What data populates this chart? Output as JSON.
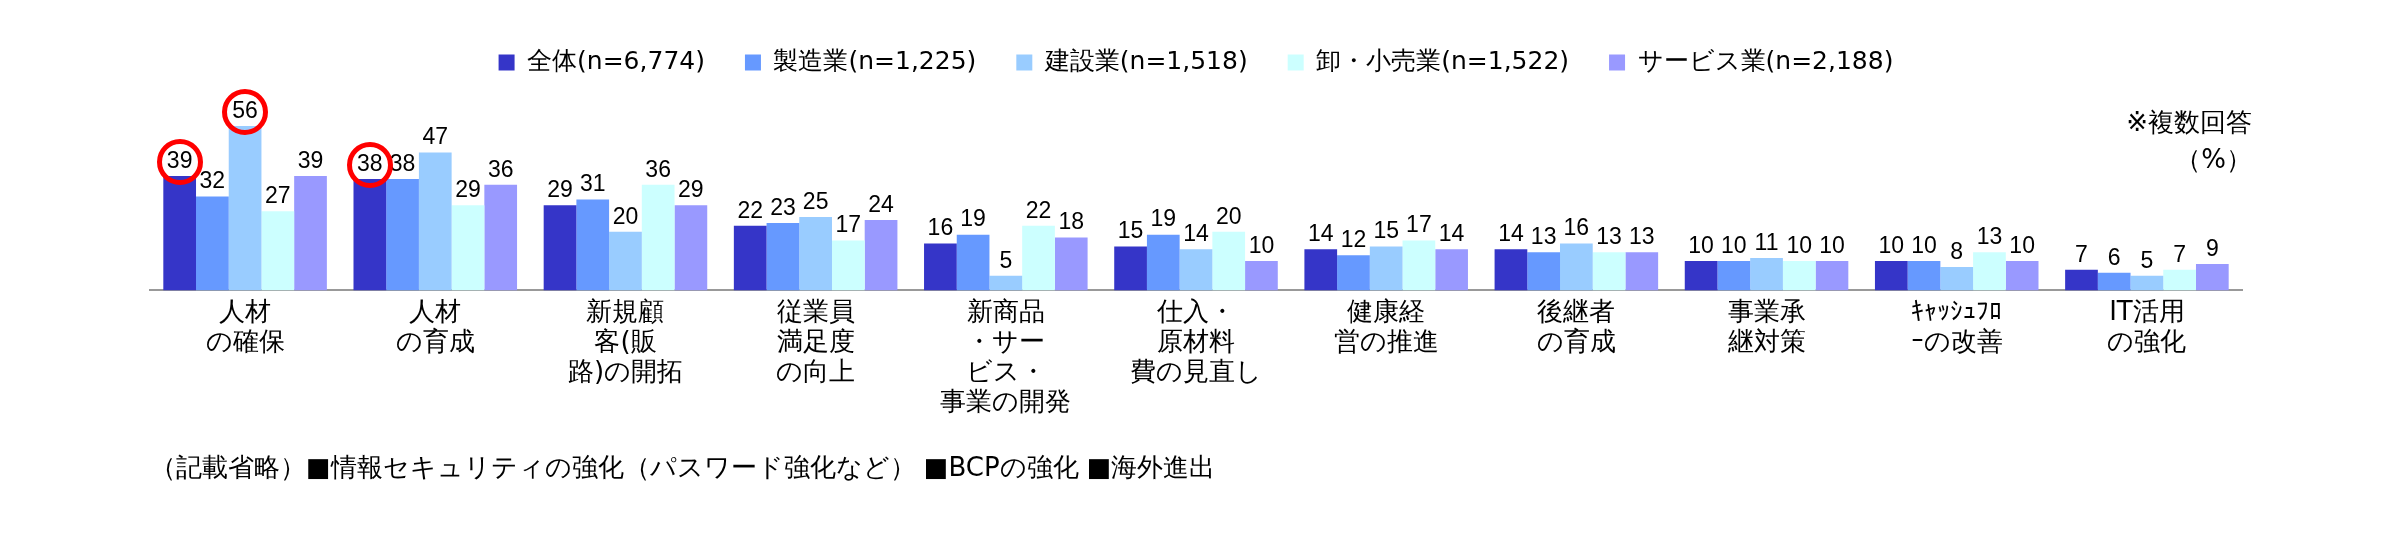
{
  "chart_data": {
    "type": "bar",
    "categories": [
      "人材の確保",
      "人材の育成",
      "新規顧客(販路)の開拓",
      "従業員満足度の向上",
      "新商品・サービス・事業の開発",
      "仕入・原材料費の見直し",
      "健康経営の推進",
      "後継者の育成",
      "事業承継対策",
      "ｷｬｯｼｭﾌﾛｰの改善",
      "IT活用の強化"
    ],
    "series": [
      {
        "name": "全体(n=6,774)",
        "color": "#3535c8",
        "values": [
          39,
          38,
          29,
          22,
          16,
          15,
          14,
          14,
          10,
          10,
          7
        ]
      },
      {
        "name": "製造業(n=1,225)",
        "color": "#6699ff",
        "values": [
          32,
          38,
          31,
          23,
          19,
          19,
          12,
          13,
          10,
          10,
          6
        ]
      },
      {
        "name": "建設業(n=1,518)",
        "color": "#99ccff",
        "values": [
          56,
          47,
          20,
          25,
          5,
          14,
          15,
          16,
          11,
          8,
          5
        ]
      },
      {
        "name": "卸・小売業(n=1,522)",
        "color": "#ccffff",
        "values": [
          27,
          29,
          36,
          17,
          22,
          20,
          17,
          13,
          10,
          13,
          7
        ]
      },
      {
        "name": "サービス業(n=2,188)",
        "color": "#9999ff",
        "values": [
          39,
          36,
          29,
          24,
          18,
          10,
          14,
          13,
          10,
          10,
          9
        ]
      }
    ],
    "data_labels": true,
    "legend": "top",
    "grid": false,
    "annotations": [
      "※複数回答",
      "（%）",
      "（記載省略）■情報セキュリティの強化（パスワード強化など） ■BCPの強化 ■海外進出"
    ]
  }
}
